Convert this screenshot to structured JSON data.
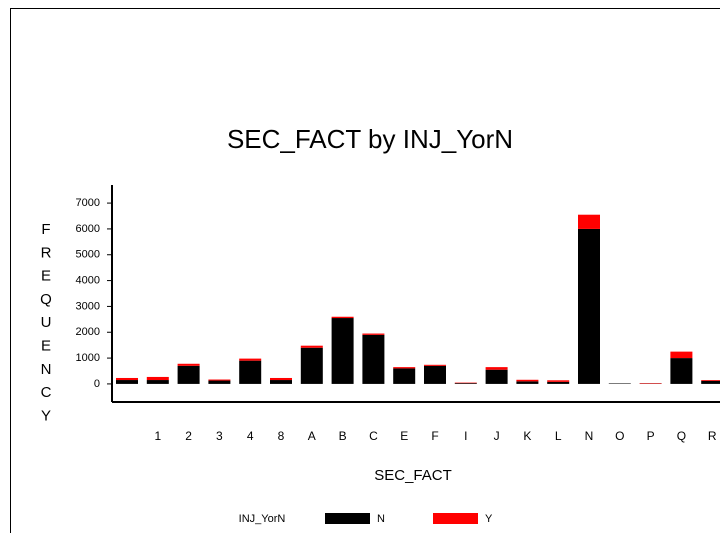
{
  "chart_data": {
    "type": "stacked_bar",
    "title": "SEC_FACT by INJ_YorN",
    "x_label": "SEC_FACT",
    "y_label": "FREQUENCY",
    "legend_title": "INJ_YorN",
    "categories": [
      null,
      "1",
      "2",
      "3",
      "4",
      "8",
      "A",
      "B",
      "C",
      "E",
      "F",
      "I",
      "J",
      "K",
      "L",
      "N",
      "O",
      "P",
      "Q",
      "R"
    ],
    "series": [
      {
        "name": "N",
        "color": "#000000",
        "values": [
          150,
          150,
          700,
          130,
          900,
          150,
          1400,
          2550,
          1900,
          600,
          700,
          30,
          550,
          100,
          80,
          6000,
          20,
          10,
          1000,
          120
        ]
      },
      {
        "name": "Y",
        "color": "#ff0000",
        "values": [
          80,
          120,
          80,
          40,
          80,
          80,
          80,
          50,
          50,
          50,
          40,
          20,
          100,
          60,
          60,
          550,
          0,
          20,
          250,
          30
        ]
      }
    ],
    "ylim": [
      -700,
      7700
    ],
    "yticks": [
      0,
      1000,
      2000,
      3000,
      4000,
      5000,
      6000,
      7000
    ],
    "legend_position": "bottom"
  }
}
